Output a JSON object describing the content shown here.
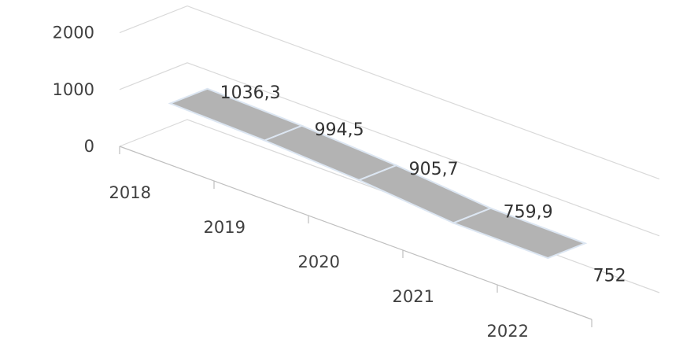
{
  "chart_data": {
    "type": "line",
    "title": "",
    "xlabel": "",
    "ylabel": "",
    "categories": [
      "2018",
      "2019",
      "2020",
      "2021",
      "2022"
    ],
    "series": [
      {
        "values": [
          1036.3,
          994.5,
          905.7,
          759.9,
          752
        ],
        "labels": [
          "1036,3",
          "994,5",
          "905,7",
          "759,9",
          "752"
        ]
      }
    ],
    "y_ticks": [
      "0",
      "1000",
      "2000"
    ],
    "ylim": [
      0,
      2000
    ],
    "grid": true,
    "legend": "none",
    "colors": {
      "ribbon_fill": "#b3b3b3",
      "ribbon_edge": "#dce6f2",
      "grid": "#d9d9d9",
      "axis": "#bfbfbf",
      "text": "#404040"
    }
  }
}
